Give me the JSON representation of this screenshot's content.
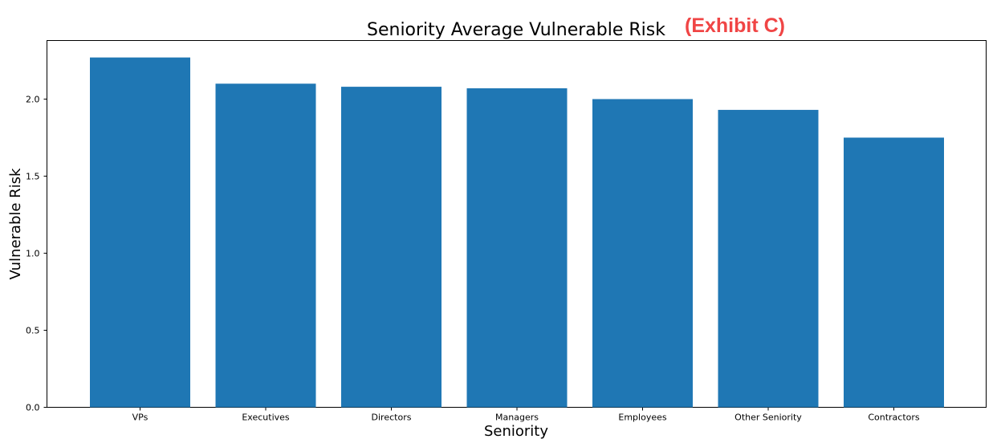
{
  "chart_data": {
    "type": "bar",
    "title": "Seniority Average Vulnerable Risk",
    "title_annotation": "(Exhibit C)",
    "xlabel": "Seniority",
    "ylabel": "Vulnerable Risk",
    "categories": [
      "VPs",
      "Executives",
      "Directors",
      "Managers",
      "Employees",
      "Other Seniority",
      "Contractors"
    ],
    "values": [
      2.27,
      2.1,
      2.08,
      2.07,
      2.0,
      1.93,
      1.75
    ],
    "yticks": [
      0.0,
      0.5,
      1.0,
      1.5,
      2.0
    ],
    "ytick_labels": [
      "0.0",
      "0.5",
      "1.0",
      "1.5",
      "2.0"
    ],
    "ylim": [
      0,
      2.38
    ],
    "grid": false,
    "legend": "none"
  },
  "colors": {
    "bar": "#1f77b4",
    "annotation": "#f04545"
  }
}
